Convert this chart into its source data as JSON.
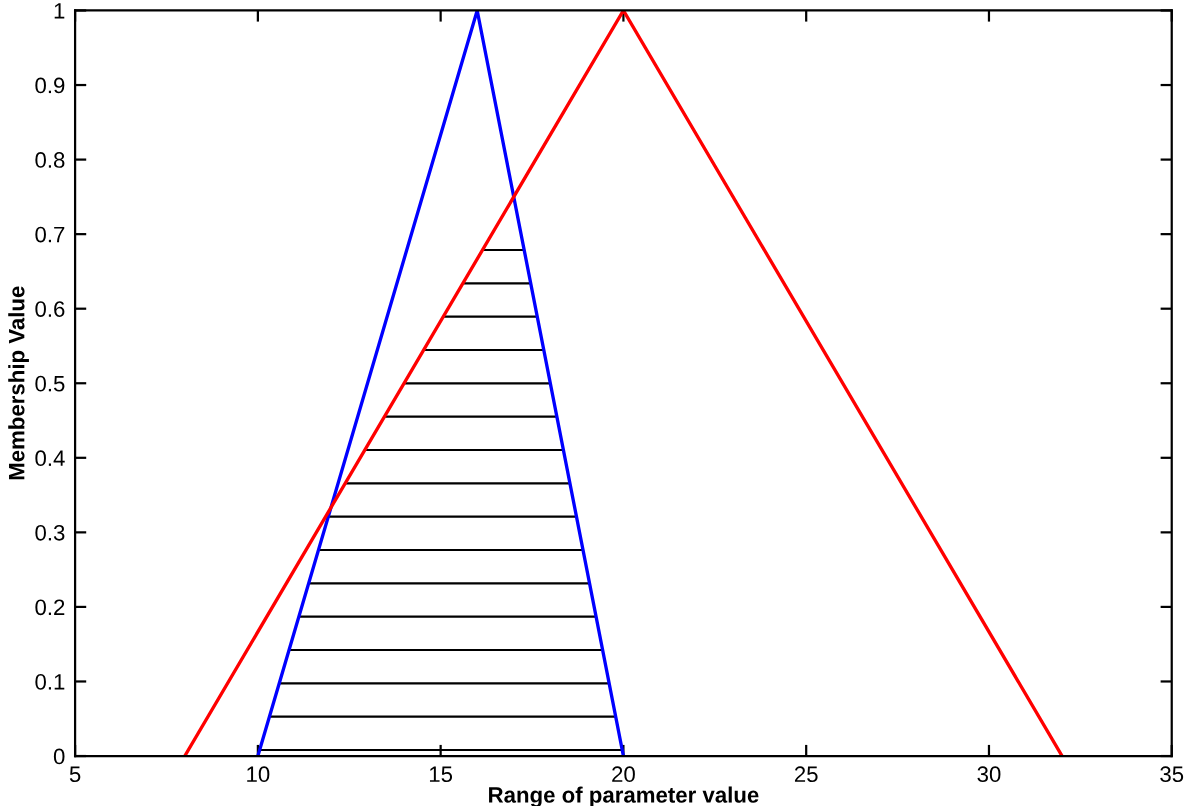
{
  "chart_data": {
    "type": "line",
    "xlabel": "Range of parameter value",
    "ylabel": "Membership Value",
    "series": [
      {
        "type": "area",
        "color": "#000000",
        "x": [
          10,
          12,
          16.4,
          17.2,
          20
        ],
        "values": [
          0,
          0.33,
          0.7,
          0.7,
          0
        ]
      },
      {
        "color": "#0000ff",
        "x": [
          10,
          16,
          20
        ],
        "values": [
          0,
          1,
          0
        ]
      },
      {
        "color": "#ff0000",
        "x": [
          8,
          20,
          32
        ],
        "values": [
          0,
          1,
          0
        ]
      }
    ],
    "xlim": [
      5,
      35
    ],
    "xticks": [
      5,
      10,
      15,
      20,
      25,
      30,
      35
    ],
    "ylim": [
      0,
      1
    ],
    "yticks": [
      0,
      0.1,
      0.2,
      0.3,
      0.4,
      0.5,
      0.6,
      0.7,
      0.8,
      0.9,
      1
    ],
    "grid": false,
    "legend": false
  }
}
